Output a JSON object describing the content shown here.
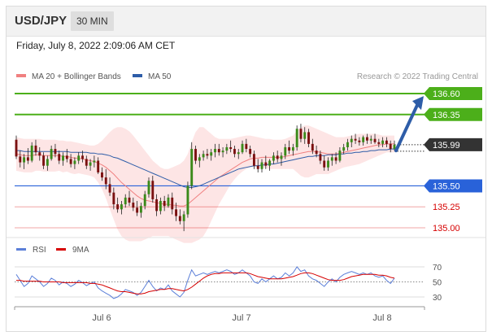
{
  "header": {
    "symbol": "USD/JPY",
    "timeframe": "30 MIN"
  },
  "timestamp": "Friday, July 8, 2022 2:09:06 AM CET",
  "credit": "Research © 2022 Trading Central",
  "colors": {
    "ma20": "#f08080",
    "ma50": "#2e5da8",
    "resistance": "#4caf1a",
    "support_blue": "#2962d9",
    "support_red": "#d60000",
    "bb_fill": "#fde0e0",
    "candle_up": "#3a8a1a",
    "candle_down": "#7a1010",
    "price_tag": "#333333",
    "arrow": "#2e5da8",
    "rsi": "#5b7fd8",
    "rsi_ma": "#d60000"
  },
  "chart_data": [
    {
      "type": "candlestick",
      "title": "",
      "legend": [
        {
          "name": "MA 20 + Bollinger Bands",
          "color": "#f08080"
        },
        {
          "name": "MA 50",
          "color": "#2e5da8"
        }
      ],
      "legend_placement": "top-left",
      "x_ticks": [
        "Jul 6",
        "Jul 7",
        "Jul 8"
      ],
      "y_range": [
        134.95,
        136.85
      ],
      "current_price": 135.99,
      "levels": [
        {
          "value": 136.6,
          "label": "136.60",
          "style": "resistance"
        },
        {
          "value": 136.35,
          "label": "136.35",
          "style": "resistance"
        },
        {
          "value": 135.5,
          "label": "135.50",
          "style": "pivot"
        },
        {
          "value": 135.25,
          "label": "135.25",
          "style": "support"
        },
        {
          "value": 135.0,
          "label": "135.00",
          "style": "support"
        }
      ],
      "forecast_arrow": {
        "from": 135.92,
        "to": 136.55
      },
      "candles": [
        [
          136.05,
          136.1,
          135.82,
          135.85
        ],
        [
          135.85,
          135.92,
          135.72,
          135.78
        ],
        [
          135.78,
          135.88,
          135.7,
          135.84
        ],
        [
          135.84,
          135.95,
          135.76,
          135.8
        ],
        [
          135.8,
          136.02,
          135.78,
          135.98
        ],
        [
          135.98,
          136.05,
          135.86,
          135.9
        ],
        [
          135.9,
          135.96,
          135.8,
          135.86
        ],
        [
          135.86,
          135.9,
          135.7,
          135.74
        ],
        [
          135.74,
          135.86,
          135.68,
          135.82
        ],
        [
          135.82,
          135.98,
          135.8,
          135.94
        ],
        [
          135.94,
          136.0,
          135.84,
          135.88
        ],
        [
          135.88,
          135.92,
          135.76,
          135.8
        ],
        [
          135.8,
          135.9,
          135.74,
          135.86
        ],
        [
          135.86,
          135.94,
          135.78,
          135.82
        ],
        [
          135.82,
          135.88,
          135.72,
          135.76
        ],
        [
          135.76,
          135.84,
          135.7,
          135.8
        ],
        [
          135.8,
          135.9,
          135.76,
          135.86
        ],
        [
          135.86,
          135.92,
          135.78,
          135.82
        ],
        [
          135.82,
          135.86,
          135.7,
          135.74
        ],
        [
          135.74,
          135.82,
          135.68,
          135.78
        ],
        [
          135.78,
          135.86,
          135.72,
          135.8
        ],
        [
          135.8,
          135.84,
          135.64,
          135.66
        ],
        [
          135.66,
          135.72,
          135.56,
          135.6
        ],
        [
          135.6,
          135.7,
          135.46,
          135.52
        ],
        [
          135.52,
          135.6,
          135.38,
          135.42
        ],
        [
          135.42,
          135.48,
          135.22,
          135.28
        ],
        [
          135.28,
          135.36,
          135.18,
          135.22
        ],
        [
          135.22,
          135.32,
          135.16,
          135.28
        ],
        [
          135.28,
          135.4,
          135.24,
          135.36
        ],
        [
          135.36,
          135.44,
          135.26,
          135.3
        ],
        [
          135.3,
          135.36,
          135.2,
          135.24
        ],
        [
          135.24,
          135.32,
          135.14,
          135.18
        ],
        [
          135.18,
          135.3,
          135.12,
          135.26
        ],
        [
          135.26,
          135.44,
          135.22,
          135.4
        ],
        [
          135.4,
          135.6,
          135.36,
          135.56
        ],
        [
          135.56,
          135.62,
          135.3,
          135.34
        ],
        [
          135.34,
          135.4,
          135.14,
          135.2
        ],
        [
          135.2,
          135.36,
          135.16,
          135.32
        ],
        [
          135.32,
          135.38,
          135.2,
          135.26
        ],
        [
          135.26,
          135.4,
          135.24,
          135.36
        ],
        [
          135.36,
          135.42,
          135.16,
          135.22
        ],
        [
          135.22,
          135.3,
          135.08,
          135.14
        ],
        [
          135.14,
          135.22,
          135.04,
          135.08
        ],
        [
          135.08,
          135.2,
          134.96,
          135.16
        ],
        [
          135.16,
          135.55,
          135.12,
          135.5
        ],
        [
          135.5,
          136.02,
          135.46,
          135.94
        ],
        [
          135.94,
          135.98,
          135.76,
          135.8
        ],
        [
          135.8,
          135.88,
          135.72,
          135.84
        ],
        [
          135.84,
          135.92,
          135.8,
          135.88
        ],
        [
          135.88,
          135.94,
          135.82,
          135.86
        ],
        [
          135.86,
          135.94,
          135.8,
          135.9
        ],
        [
          135.9,
          136.0,
          135.84,
          135.94
        ],
        [
          135.94,
          136.0,
          135.86,
          135.9
        ],
        [
          135.9,
          135.96,
          135.84,
          135.92
        ],
        [
          135.92,
          136.0,
          135.88,
          135.96
        ],
        [
          135.96,
          136.04,
          135.9,
          135.94
        ],
        [
          135.94,
          135.98,
          135.84,
          135.88
        ],
        [
          135.88,
          135.94,
          135.82,
          135.9
        ],
        [
          135.9,
          136.04,
          135.88,
          136.0
        ],
        [
          136.0,
          136.06,
          135.9,
          135.94
        ],
        [
          135.94,
          135.98,
          135.84,
          135.88
        ],
        [
          135.88,
          135.92,
          135.7,
          135.74
        ],
        [
          135.74,
          135.82,
          135.66,
          135.7
        ],
        [
          135.7,
          135.82,
          135.66,
          135.78
        ],
        [
          135.78,
          135.86,
          135.7,
          135.74
        ],
        [
          135.74,
          135.82,
          135.68,
          135.8
        ],
        [
          135.8,
          135.9,
          135.76,
          135.86
        ],
        [
          135.86,
          135.92,
          135.78,
          135.82
        ],
        [
          135.82,
          135.9,
          135.74,
          135.86
        ],
        [
          135.86,
          136.0,
          135.82,
          135.96
        ],
        [
          135.96,
          136.04,
          135.88,
          135.92
        ],
        [
          135.92,
          136.0,
          135.86,
          135.96
        ],
        [
          135.96,
          136.22,
          135.92,
          136.18
        ],
        [
          136.18,
          136.24,
          136.02,
          136.06
        ],
        [
          136.06,
          136.2,
          136.0,
          136.14
        ],
        [
          136.14,
          136.18,
          135.96,
          136.0
        ],
        [
          136.0,
          136.06,
          135.88,
          135.92
        ],
        [
          135.92,
          135.98,
          135.84,
          135.88
        ],
        [
          135.88,
          135.92,
          135.76,
          135.8
        ],
        [
          135.8,
          135.86,
          135.68,
          135.72
        ],
        [
          135.72,
          135.84,
          135.68,
          135.8
        ],
        [
          135.8,
          135.88,
          135.74,
          135.84
        ],
        [
          135.84,
          135.9,
          135.76,
          135.8
        ],
        [
          135.8,
          135.96,
          135.78,
          135.92
        ],
        [
          135.92,
          136.0,
          135.88,
          135.96
        ],
        [
          135.96,
          136.06,
          135.92,
          136.02
        ],
        [
          136.02,
          136.1,
          135.96,
          136.06
        ],
        [
          136.06,
          136.12,
          136.0,
          136.04
        ],
        [
          136.04,
          136.08,
          135.98,
          136.02
        ],
        [
          136.02,
          136.1,
          135.98,
          136.08
        ],
        [
          136.08,
          136.12,
          136.0,
          136.04
        ],
        [
          136.04,
          136.1,
          136.0,
          136.06
        ],
        [
          136.06,
          136.12,
          136.0,
          136.02
        ],
        [
          136.02,
          136.06,
          135.96,
          136.0
        ],
        [
          136.0,
          136.08,
          135.96,
          136.04
        ],
        [
          136.04,
          136.08,
          135.96,
          136.0
        ],
        [
          136.0,
          136.04,
          135.9,
          135.94
        ],
        [
          135.94,
          136.04,
          135.92,
          135.99
        ]
      ],
      "ma20": [
        135.88,
        135.87,
        135.86,
        135.86,
        135.86,
        135.87,
        135.87,
        135.86,
        135.86,
        135.86,
        135.86,
        135.86,
        135.85,
        135.85,
        135.84,
        135.83,
        135.83,
        135.82,
        135.81,
        135.8,
        135.79,
        135.77,
        135.75,
        135.72,
        135.68,
        135.64,
        135.59,
        135.54,
        135.5,
        135.46,
        135.42,
        135.38,
        135.35,
        135.33,
        135.32,
        135.31,
        135.3,
        135.29,
        135.28,
        135.28,
        135.27,
        135.27,
        135.26,
        135.26,
        135.28,
        135.32,
        135.36,
        135.4,
        135.44,
        135.48,
        135.52,
        135.56,
        135.6,
        135.63,
        135.66,
        135.69,
        135.72,
        135.75,
        135.78,
        135.8,
        135.82,
        135.83,
        135.83,
        135.84,
        135.84,
        135.84,
        135.84,
        135.84,
        135.84,
        135.85,
        135.86,
        135.87,
        135.88,
        135.89,
        135.9,
        135.91,
        135.91,
        135.91,
        135.9,
        135.89,
        135.88,
        135.88,
        135.88,
        135.89,
        135.9,
        135.91,
        135.92,
        135.93,
        135.94,
        135.95,
        135.96,
        135.97,
        135.98,
        135.99,
        135.99,
        136.0,
        136.0,
        136.0
      ],
      "bb_upper": [
        136.08,
        136.07,
        136.06,
        136.06,
        136.06,
        136.06,
        136.06,
        136.05,
        136.05,
        136.05,
        136.05,
        136.04,
        136.04,
        136.03,
        136.03,
        136.02,
        136.01,
        136.0,
        135.99,
        135.98,
        135.98,
        136.0,
        136.04,
        136.09,
        136.14,
        136.18,
        136.2,
        136.2,
        136.18,
        136.15,
        136.1,
        136.04,
        135.98,
        135.92,
        135.86,
        135.8,
        135.76,
        135.72,
        135.7,
        135.7,
        135.72,
        135.74,
        135.76,
        135.8,
        135.88,
        136.02,
        136.14,
        136.2,
        136.2,
        136.16,
        136.12,
        136.08,
        136.06,
        136.06,
        136.06,
        136.06,
        136.07,
        136.08,
        136.09,
        136.1,
        136.1,
        136.09,
        136.08,
        136.07,
        136.06,
        136.06,
        136.05,
        136.05,
        136.05,
        136.06,
        136.08,
        136.1,
        136.16,
        136.2,
        136.22,
        136.22,
        136.2,
        136.18,
        136.16,
        136.14,
        136.12,
        136.1,
        136.08,
        136.08,
        136.08,
        136.09,
        136.1,
        136.11,
        136.12,
        136.12,
        136.12,
        136.12,
        136.12,
        136.11,
        136.1,
        136.1,
        136.1,
        136.1
      ],
      "bb_lower": [
        135.68,
        135.67,
        135.66,
        135.66,
        135.66,
        135.68,
        135.68,
        135.67,
        135.67,
        135.67,
        135.67,
        135.68,
        135.66,
        135.67,
        135.65,
        135.64,
        135.65,
        135.64,
        135.63,
        135.62,
        135.6,
        135.54,
        135.46,
        135.35,
        135.22,
        135.1,
        134.98,
        134.9,
        134.86,
        134.84,
        134.84,
        134.84,
        134.84,
        134.86,
        134.88,
        134.9,
        134.9,
        134.9,
        134.9,
        134.9,
        134.88,
        134.86,
        134.84,
        134.82,
        134.82,
        134.82,
        134.84,
        134.86,
        134.9,
        134.98,
        135.08,
        135.18,
        135.28,
        135.36,
        135.44,
        135.52,
        135.58,
        135.63,
        135.67,
        135.7,
        135.72,
        135.73,
        135.72,
        135.72,
        135.71,
        135.7,
        135.7,
        135.7,
        135.7,
        135.7,
        135.7,
        135.7,
        135.66,
        135.62,
        135.6,
        135.6,
        135.62,
        135.64,
        135.64,
        135.64,
        135.64,
        135.66,
        135.68,
        135.7,
        135.72,
        135.73,
        135.74,
        135.75,
        135.76,
        135.78,
        135.8,
        135.82,
        135.84,
        135.86,
        135.88,
        135.9,
        135.9,
        135.9
      ],
      "ma50": [
        135.92,
        135.92,
        135.91,
        135.91,
        135.91,
        135.91,
        135.91,
        135.91,
        135.91,
        135.91,
        135.91,
        135.91,
        135.91,
        135.91,
        135.9,
        135.9,
        135.9,
        135.9,
        135.9,
        135.89,
        135.89,
        135.88,
        135.88,
        135.87,
        135.86,
        135.84,
        135.83,
        135.81,
        135.79,
        135.77,
        135.75,
        135.73,
        135.71,
        135.69,
        135.67,
        135.65,
        135.63,
        135.61,
        135.59,
        135.57,
        135.55,
        135.53,
        135.51,
        135.49,
        135.48,
        135.48,
        135.49,
        135.5,
        135.52,
        135.54,
        135.56,
        135.58,
        135.6,
        135.62,
        135.64,
        135.66,
        135.68,
        135.7,
        135.71,
        135.72,
        135.73,
        135.74,
        135.74,
        135.75,
        135.75,
        135.76,
        135.76,
        135.77,
        135.78,
        135.79,
        135.8,
        135.81,
        135.82,
        135.83,
        135.84,
        135.85,
        135.85,
        135.86,
        135.86,
        135.86,
        135.87,
        135.87,
        135.87,
        135.88,
        135.88,
        135.89,
        135.89,
        135.9,
        135.9,
        135.91,
        135.91,
        135.92,
        135.92,
        135.93,
        135.93,
        135.93,
        135.94,
        135.94
      ]
    },
    {
      "type": "line",
      "title": "",
      "legend": [
        {
          "name": "RSI",
          "color": "#5b7fd8"
        },
        {
          "name": "9MA",
          "color": "#d60000"
        }
      ],
      "legend_placement": "top-left",
      "y_ticks": [
        70,
        50,
        30
      ],
      "y_range": [
        20,
        80
      ],
      "x_ticks": [
        "Jul 6",
        "Jul 7",
        "Jul 8"
      ],
      "rsi": [
        60,
        52,
        44,
        48,
        58,
        54,
        50,
        44,
        48,
        55,
        52,
        46,
        50,
        48,
        44,
        47,
        52,
        49,
        45,
        48,
        50,
        42,
        38,
        35,
        32,
        28,
        30,
        34,
        40,
        38,
        36,
        32,
        36,
        44,
        52,
        44,
        38,
        42,
        40,
        46,
        38,
        34,
        30,
        36,
        52,
        66,
        58,
        60,
        62,
        60,
        62,
        64,
        62,
        64,
        66,
        64,
        60,
        62,
        66,
        62,
        58,
        50,
        48,
        54,
        50,
        54,
        58,
        54,
        56,
        62,
        58,
        62,
        70,
        64,
        66,
        58,
        54,
        52,
        48,
        44,
        50,
        54,
        50,
        56,
        60,
        62,
        64,
        62,
        60,
        62,
        60,
        62,
        58,
        56,
        58,
        52,
        48,
        55
      ],
      "rsi_ma": [
        52,
        52,
        51,
        51,
        51,
        51,
        51,
        50,
        50,
        50,
        50,
        50,
        49,
        49,
        49,
        49,
        49,
        49,
        49,
        48,
        48,
        47,
        46,
        44,
        42,
        40,
        38,
        37,
        37,
        36,
        35,
        34,
        34,
        35,
        37,
        38,
        39,
        40,
        40,
        41,
        41,
        40,
        39,
        38,
        40,
        43,
        47,
        51,
        55,
        58,
        60,
        61,
        61,
        62,
        62,
        62,
        62,
        62,
        62,
        62,
        61,
        59,
        57,
        56,
        55,
        54,
        54,
        54,
        54,
        55,
        56,
        57,
        59,
        61,
        62,
        62,
        61,
        59,
        57,
        55,
        53,
        52,
        52,
        52,
        53,
        55,
        57,
        58,
        59,
        60,
        60,
        60,
        60,
        59,
        59,
        58,
        56,
        55
      ]
    }
  ]
}
